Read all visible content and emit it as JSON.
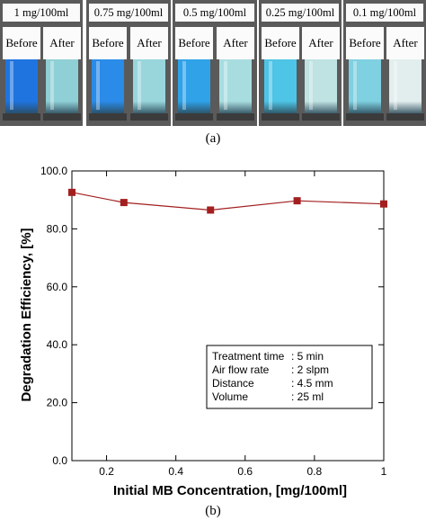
{
  "photos": {
    "panels": [
      {
        "label": "1 mg/100ml",
        "before_color": "#1f74e0",
        "after_color": "#8fd0d6"
      },
      {
        "label": "0.75 mg/100ml",
        "before_color": "#2a8be8",
        "after_color": "#98d6dc"
      },
      {
        "label": "0.5 mg/100ml",
        "before_color": "#2fa2e8",
        "after_color": "#a8dde0"
      },
      {
        "label": "0.25 mg/100ml",
        "before_color": "#4ec4e6",
        "after_color": "#bfe2e2"
      },
      {
        "label": "0.1 mg/100ml",
        "before_color": "#7fd0e0",
        "after_color": "#e2eeee"
      }
    ],
    "before_label": "Before",
    "after_label": "After"
  },
  "caption_a": "(a)",
  "caption_b": "(b)",
  "chart_data": {
    "type": "line",
    "x": [
      0.1,
      0.25,
      0.5,
      0.75,
      1.0
    ],
    "series": [
      {
        "values": [
          92.6,
          89.1,
          86.5,
          89.7,
          88.6
        ],
        "color": "#a31f1f"
      }
    ],
    "xlabel": "Initial MB Concentration, [mg/100ml]",
    "ylabel": "Degradation Efficiency, [%]",
    "xlim": [
      0.1,
      1.0
    ],
    "ylim": [
      0,
      100
    ],
    "xticks": [
      0.2,
      0.4,
      0.6,
      0.8,
      1
    ],
    "xtick_labels": [
      "0.2",
      "0.4",
      "0.6",
      "0.8",
      "1"
    ],
    "yticks": [
      0,
      20,
      40,
      60,
      80,
      100
    ],
    "ytick_labels": [
      "0.0",
      "20.0",
      "40.0",
      "60.0",
      "80.0",
      "100.0"
    ],
    "grid": false,
    "annotation": {
      "rows": [
        {
          "key": "Treatment time",
          "value": ": 5 min"
        },
        {
          "key": "Air flow rate",
          "value": ": 2 slpm"
        },
        {
          "key": "Distance",
          "value": ": 4.5 mm"
        },
        {
          "key": "Volume",
          "value": ": 25 ml"
        }
      ]
    }
  }
}
